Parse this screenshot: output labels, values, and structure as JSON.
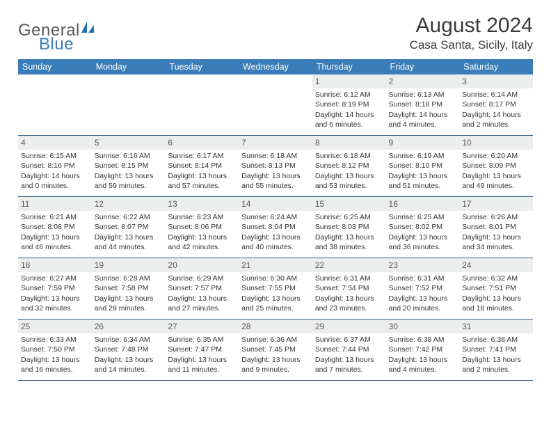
{
  "logo": {
    "word1": "General",
    "word2": "Blue",
    "accent": "#1f6fb4",
    "gray": "#5a5a5a"
  },
  "header": {
    "month_title": "August 2024",
    "location": "Casa Santa, Sicily, Italy"
  },
  "styling": {
    "header_bg": "#3a7db8",
    "header_text": "#ffffff",
    "row_border": "#2f5b88",
    "daynum_bg": "#eceded",
    "daynum_color": "#595959",
    "body_text": "#333333",
    "page_bg": "#ffffff",
    "font_family": "Arial",
    "title_fontsize_pt": 22,
    "location_fontsize_pt": 13,
    "dayheader_fontsize_pt": 9.5,
    "cell_fontsize_pt": 8,
    "cols": 7,
    "rows": 5
  },
  "day_headers": [
    "Sunday",
    "Monday",
    "Tuesday",
    "Wednesday",
    "Thursday",
    "Friday",
    "Saturday"
  ],
  "labels": {
    "sunrise_prefix": "Sunrise: ",
    "sunset_prefix": "Sunset: ",
    "daylight_prefix": "Daylight: "
  },
  "weeks": [
    [
      null,
      null,
      null,
      null,
      {
        "n": "1",
        "sunrise": "6:12 AM",
        "sunset": "8:19 PM",
        "dl1": "14 hours",
        "dl2": "and 6 minutes."
      },
      {
        "n": "2",
        "sunrise": "6:13 AM",
        "sunset": "8:18 PM",
        "dl1": "14 hours",
        "dl2": "and 4 minutes."
      },
      {
        "n": "3",
        "sunrise": "6:14 AM",
        "sunset": "8:17 PM",
        "dl1": "14 hours",
        "dl2": "and 2 minutes."
      }
    ],
    [
      {
        "n": "4",
        "sunrise": "6:15 AM",
        "sunset": "8:16 PM",
        "dl1": "14 hours",
        "dl2": "and 0 minutes."
      },
      {
        "n": "5",
        "sunrise": "6:16 AM",
        "sunset": "8:15 PM",
        "dl1": "13 hours",
        "dl2": "and 59 minutes."
      },
      {
        "n": "6",
        "sunrise": "6:17 AM",
        "sunset": "8:14 PM",
        "dl1": "13 hours",
        "dl2": "and 57 minutes."
      },
      {
        "n": "7",
        "sunrise": "6:18 AM",
        "sunset": "8:13 PM",
        "dl1": "13 hours",
        "dl2": "and 55 minutes."
      },
      {
        "n": "8",
        "sunrise": "6:18 AM",
        "sunset": "8:12 PM",
        "dl1": "13 hours",
        "dl2": "and 53 minutes."
      },
      {
        "n": "9",
        "sunrise": "6:19 AM",
        "sunset": "8:10 PM",
        "dl1": "13 hours",
        "dl2": "and 51 minutes."
      },
      {
        "n": "10",
        "sunrise": "6:20 AM",
        "sunset": "8:09 PM",
        "dl1": "13 hours",
        "dl2": "and 49 minutes."
      }
    ],
    [
      {
        "n": "11",
        "sunrise": "6:21 AM",
        "sunset": "8:08 PM",
        "dl1": "13 hours",
        "dl2": "and 46 minutes."
      },
      {
        "n": "12",
        "sunrise": "6:22 AM",
        "sunset": "8:07 PM",
        "dl1": "13 hours",
        "dl2": "and 44 minutes."
      },
      {
        "n": "13",
        "sunrise": "6:23 AM",
        "sunset": "8:06 PM",
        "dl1": "13 hours",
        "dl2": "and 42 minutes."
      },
      {
        "n": "14",
        "sunrise": "6:24 AM",
        "sunset": "8:04 PM",
        "dl1": "13 hours",
        "dl2": "and 40 minutes."
      },
      {
        "n": "15",
        "sunrise": "6:25 AM",
        "sunset": "8:03 PM",
        "dl1": "13 hours",
        "dl2": "and 38 minutes."
      },
      {
        "n": "16",
        "sunrise": "6:25 AM",
        "sunset": "8:02 PM",
        "dl1": "13 hours",
        "dl2": "and 36 minutes."
      },
      {
        "n": "17",
        "sunrise": "6:26 AM",
        "sunset": "8:01 PM",
        "dl1": "13 hours",
        "dl2": "and 34 minutes."
      }
    ],
    [
      {
        "n": "18",
        "sunrise": "6:27 AM",
        "sunset": "7:59 PM",
        "dl1": "13 hours",
        "dl2": "and 32 minutes."
      },
      {
        "n": "19",
        "sunrise": "6:28 AM",
        "sunset": "7:58 PM",
        "dl1": "13 hours",
        "dl2": "and 29 minutes."
      },
      {
        "n": "20",
        "sunrise": "6:29 AM",
        "sunset": "7:57 PM",
        "dl1": "13 hours",
        "dl2": "and 27 minutes."
      },
      {
        "n": "21",
        "sunrise": "6:30 AM",
        "sunset": "7:55 PM",
        "dl1": "13 hours",
        "dl2": "and 25 minutes."
      },
      {
        "n": "22",
        "sunrise": "6:31 AM",
        "sunset": "7:54 PM",
        "dl1": "13 hours",
        "dl2": "and 23 minutes."
      },
      {
        "n": "23",
        "sunrise": "6:31 AM",
        "sunset": "7:52 PM",
        "dl1": "13 hours",
        "dl2": "and 20 minutes."
      },
      {
        "n": "24",
        "sunrise": "6:32 AM",
        "sunset": "7:51 PM",
        "dl1": "13 hours",
        "dl2": "and 18 minutes."
      }
    ],
    [
      {
        "n": "25",
        "sunrise": "6:33 AM",
        "sunset": "7:50 PM",
        "dl1": "13 hours",
        "dl2": "and 16 minutes."
      },
      {
        "n": "26",
        "sunrise": "6:34 AM",
        "sunset": "7:48 PM",
        "dl1": "13 hours",
        "dl2": "and 14 minutes."
      },
      {
        "n": "27",
        "sunrise": "6:35 AM",
        "sunset": "7:47 PM",
        "dl1": "13 hours",
        "dl2": "and 11 minutes."
      },
      {
        "n": "28",
        "sunrise": "6:36 AM",
        "sunset": "7:45 PM",
        "dl1": "13 hours",
        "dl2": "and 9 minutes."
      },
      {
        "n": "29",
        "sunrise": "6:37 AM",
        "sunset": "7:44 PM",
        "dl1": "13 hours",
        "dl2": "and 7 minutes."
      },
      {
        "n": "30",
        "sunrise": "6:38 AM",
        "sunset": "7:42 PM",
        "dl1": "13 hours",
        "dl2": "and 4 minutes."
      },
      {
        "n": "31",
        "sunrise": "6:38 AM",
        "sunset": "7:41 PM",
        "dl1": "13 hours",
        "dl2": "and 2 minutes."
      }
    ]
  ]
}
